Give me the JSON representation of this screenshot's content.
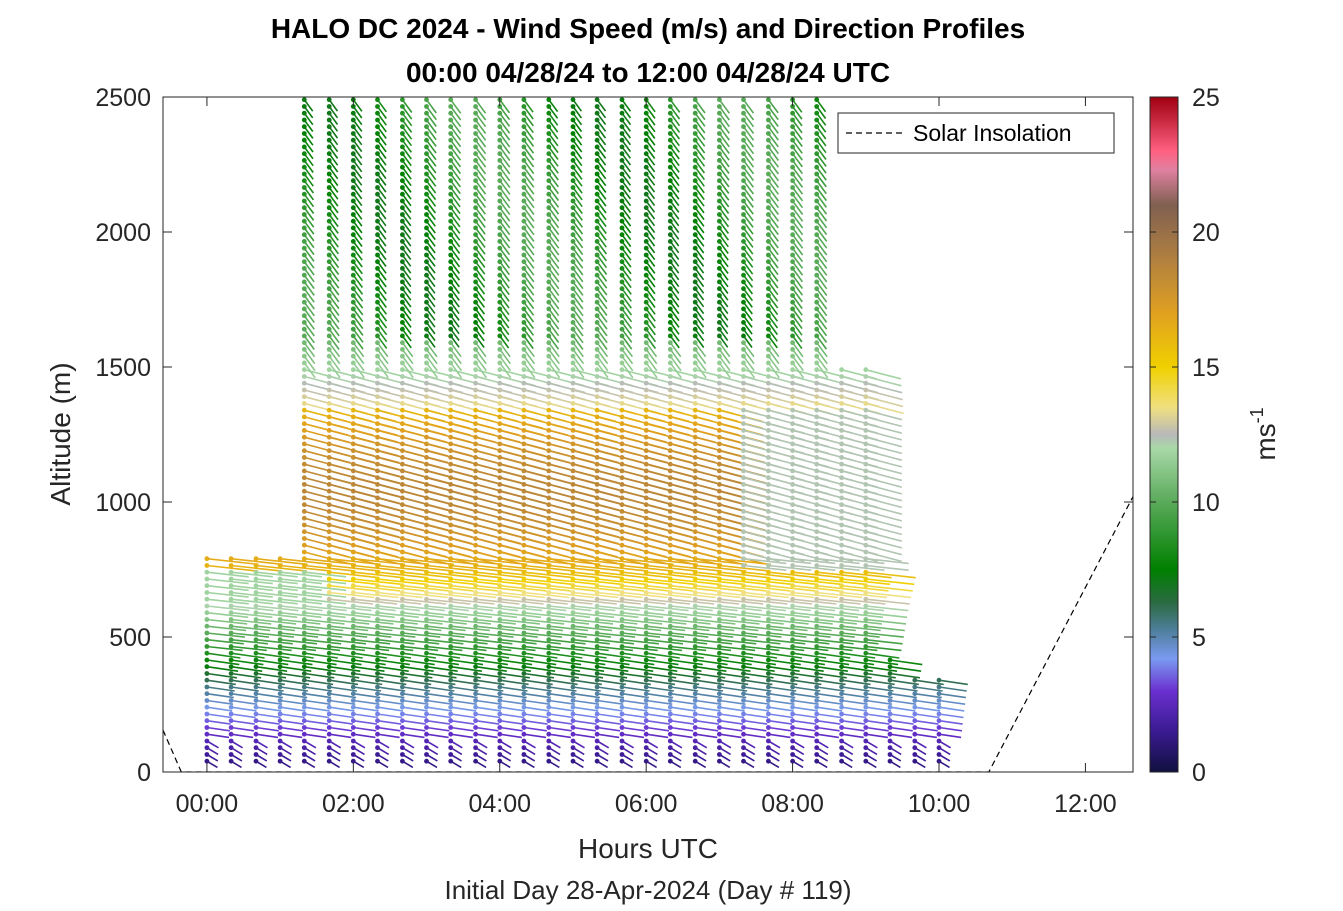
{
  "chart_data": {
    "type": "scatter",
    "title_line1": "HALO DC 2024 - Wind Speed (m/s) and Direction Profiles",
    "title_line2": "00:00 04/28/24 to 12:00 04/28/24  UTC",
    "xlabel": "Hours UTC",
    "xlabel_sub": "Initial Day 28-Apr-2024 (Day # 119)",
    "ylabel": "Altitude (m)",
    "xlim": [
      -0.6,
      12.65
    ],
    "ylim": [
      0,
      2500
    ],
    "x_ticks": [
      0,
      2,
      4,
      6,
      8,
      10,
      12
    ],
    "x_tick_labels": [
      "00:00",
      "02:00",
      "04:00",
      "06:00",
      "08:00",
      "10:00",
      "12:00"
    ],
    "y_ticks": [
      0,
      500,
      1000,
      1500,
      2000,
      2500
    ],
    "y_tick_labels": [
      "0",
      "500",
      "1000",
      "1500",
      "2000",
      "2500"
    ],
    "colorbar": {
      "label_base": "ms",
      "label_exp": "-1",
      "range": [
        0,
        25
      ],
      "ticks": [
        0,
        5,
        10,
        15,
        20,
        25
      ],
      "tick_labels": [
        "0",
        "5",
        "10",
        "15",
        "20",
        "25"
      ],
      "stops": [
        {
          "v": 0,
          "color": "#101040"
        },
        {
          "v": 1.5,
          "color": "#3a1a90"
        },
        {
          "v": 3,
          "color": "#6a30d0"
        },
        {
          "v": 4.2,
          "color": "#7a9af0"
        },
        {
          "v": 5.2,
          "color": "#5080a0"
        },
        {
          "v": 6.3,
          "color": "#2a6a40"
        },
        {
          "v": 7.5,
          "color": "#008000"
        },
        {
          "v": 10,
          "color": "#5aaa5a"
        },
        {
          "v": 12,
          "color": "#a8d8a8"
        },
        {
          "v": 12.5,
          "color": "#b8b8b8"
        },
        {
          "v": 13.5,
          "color": "#f0e080"
        },
        {
          "v": 15,
          "color": "#f0d000"
        },
        {
          "v": 17,
          "color": "#e0a020"
        },
        {
          "v": 19,
          "color": "#b08040"
        },
        {
          "v": 21,
          "color": "#806050"
        },
        {
          "v": 22.3,
          "color": "#e080a0"
        },
        {
          "v": 23,
          "color": "#ff6080"
        },
        {
          "v": 25,
          "color": "#a00010"
        }
      ]
    },
    "legend": {
      "label": "Solar Insolation",
      "position": "top-right"
    },
    "solar_insolation": {
      "x": [
        -0.6,
        -0.35,
        10.68,
        12.65
      ],
      "y": [
        155,
        0,
        0,
        1020
      ]
    },
    "wind_profiles": {
      "profile_times_h": [
        0,
        0.33,
        0.67,
        1.0,
        1.33,
        1.67,
        2.0,
        2.33,
        2.67,
        3.0,
        3.33,
        3.67,
        4.0,
        4.33,
        4.67,
        5.0,
        5.33,
        5.67,
        6.0,
        6.33,
        6.67,
        7.0,
        7.33,
        7.67,
        8.0,
        8.33,
        8.67,
        9.0,
        9.33,
        9.67,
        10.0
      ],
      "speed_by_altitude": {
        "altitude_m": [
          40,
          100,
          200,
          300,
          400,
          500,
          600,
          700,
          800,
          1000,
          1200,
          1400,
          1600,
          1800,
          2000,
          2500
        ],
        "speed_ms": [
          2,
          2.5,
          4,
          5.5,
          7,
          8.5,
          10,
          12,
          16,
          17,
          18,
          14,
          11,
          9,
          8,
          8
        ]
      },
      "direction_note": "low levels ~westerly/southwesterly, mid levels ~west-northwesterly, upper levels ~northerly"
    }
  }
}
